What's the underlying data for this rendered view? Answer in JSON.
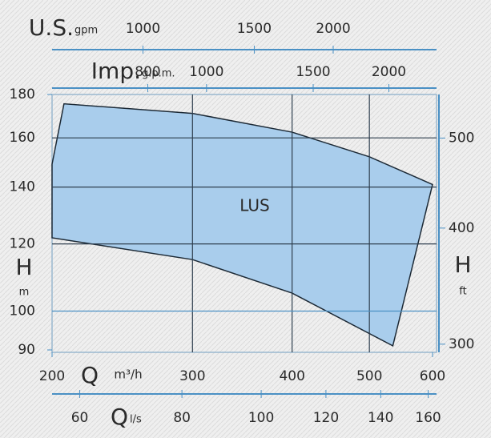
{
  "chart_data": {
    "type": "area",
    "xlabel": "Q",
    "xunit": "m³/h",
    "ylabel": "H",
    "yunit": "m",
    "xlim": [
      200,
      600
    ],
    "xticks": [
      200,
      300,
      400,
      500,
      600
    ],
    "xlog": true,
    "ylim": [
      90,
      180
    ],
    "yticks": [
      90,
      100,
      120,
      140,
      160,
      180
    ],
    "ylog": true,
    "grid": true,
    "series": [
      {
        "name": "LUS",
        "color": "#a9cdec",
        "x": [
          200,
          207,
          300,
          400,
          500,
          600,
          535,
          400,
          300,
          200
        ],
        "values": [
          149,
          175.5,
          171,
          162.5,
          152,
          141,
          91,
          105,
          115,
          122
        ]
      }
    ],
    "us_axis": {
      "label": "U.S.",
      "unit": "gpm",
      "lim": [
        718,
        2872
      ],
      "ticks": [
        1000,
        1500,
        2000
      ],
      "log": true
    },
    "imp_axis": {
      "label": "Imp.",
      "unit": "g.p.m.",
      "lim": [
        556,
        2361
      ],
      "ticks": [
        800,
        1000,
        1500,
        2000
      ],
      "log": true
    },
    "ls_axis": {
      "label": "Q",
      "unit": "l/s",
      "lim": [
        55.5,
        162
      ],
      "ticks": [
        60,
        80,
        100,
        120,
        140,
        160
      ],
      "log": true
    },
    "ft_axis": {
      "label": "H",
      "unit": "ft",
      "lim": [
        294,
        557
      ],
      "ticks": [
        300,
        400,
        500
      ],
      "log": true
    }
  }
}
